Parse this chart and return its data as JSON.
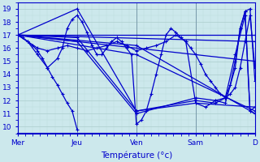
{
  "xlabel": "Température (°c)",
  "xlim": [
    0,
    96
  ],
  "ylim": [
    9.5,
    19.5
  ],
  "yticks": [
    10,
    11,
    12,
    13,
    14,
    15,
    16,
    17,
    18,
    19
  ],
  "xtick_positions": [
    0,
    24,
    48,
    72,
    96
  ],
  "xtick_labels": [
    "Mer",
    "Jeu",
    "Ven",
    "Sam",
    "D"
  ],
  "bg_color": "#cce8ec",
  "grid_major_color": "#aacccc",
  "grid_minor_color": "#bbdddd",
  "line_color": "#0000cc",
  "marker": "+",
  "markersize": 3,
  "linewidth": 0.9,
  "series": [
    [
      0,
      17.0,
      2,
      16.8,
      4,
      16.5,
      6,
      16.2,
      8,
      15.8,
      10,
      15.2,
      12,
      14.5,
      14,
      13.8,
      16,
      13.2,
      18,
      12.5,
      20,
      11.8,
      22,
      11.2,
      24,
      9.8
    ],
    [
      0,
      17.0,
      4,
      16.5,
      8,
      15.5,
      12,
      14.5,
      16,
      15.2,
      18,
      16.0,
      20,
      17.5,
      22,
      18.2,
      24,
      18.5,
      26,
      18.0,
      28,
      17.2,
      30,
      16.2,
      32,
      15.5,
      34,
      15.5,
      36,
      16.0,
      38,
      16.5,
      40,
      16.8,
      42,
      16.5,
      44,
      16.0,
      46,
      15.5,
      48,
      10.2,
      50,
      10.5,
      52,
      11.2,
      54,
      12.5,
      56,
      14.0,
      58,
      15.5,
      60,
      17.0,
      62,
      17.5,
      64,
      17.2,
      66,
      16.8,
      68,
      16.5,
      70,
      16.0,
      72,
      15.5,
      74,
      14.8,
      76,
      14.0,
      78,
      13.5,
      80,
      13.0,
      82,
      12.5,
      84,
      12.2,
      86,
      13.2,
      88,
      15.0,
      90,
      17.5,
      92,
      18.8,
      94,
      11.2,
      96,
      11.0
    ],
    [
      0,
      17.0,
      96,
      17.0
    ],
    [
      0,
      17.0,
      96,
      16.5
    ],
    [
      0,
      17.0,
      96,
      15.0
    ],
    [
      0,
      17.0,
      48,
      16.2,
      96,
      11.0
    ],
    [
      0,
      17.0,
      48,
      15.5,
      96,
      11.2
    ],
    [
      0,
      17.0,
      24,
      16.8,
      48,
      11.2,
      72,
      11.8,
      96,
      11.5
    ],
    [
      0,
      17.0,
      24,
      16.5,
      48,
      11.0,
      72,
      12.2,
      80,
      12.0,
      84,
      11.8,
      88,
      14.5,
      90,
      17.5,
      92,
      18.8,
      94,
      19.0,
      96,
      13.5
    ],
    [
      0,
      17.0,
      24,
      19.0,
      48,
      11.2,
      72,
      12.0,
      80,
      11.8,
      84,
      12.2,
      88,
      15.5,
      92,
      18.5,
      94,
      11.2,
      96,
      11.5
    ],
    [
      0,
      17.0,
      8,
      16.0,
      12,
      15.8,
      16,
      16.0,
      20,
      16.2,
      24,
      16.0,
      28,
      15.8,
      32,
      16.0,
      36,
      16.2,
      40,
      16.5,
      44,
      16.2,
      48,
      15.8,
      52,
      16.0,
      56,
      16.2,
      60,
      16.5,
      64,
      17.0,
      68,
      16.5,
      72,
      11.8,
      76,
      11.5,
      80,
      12.0,
      84,
      12.2,
      86,
      12.5,
      88,
      13.0,
      90,
      14.5,
      92,
      16.5,
      94,
      18.5,
      96,
      14.5
    ]
  ]
}
